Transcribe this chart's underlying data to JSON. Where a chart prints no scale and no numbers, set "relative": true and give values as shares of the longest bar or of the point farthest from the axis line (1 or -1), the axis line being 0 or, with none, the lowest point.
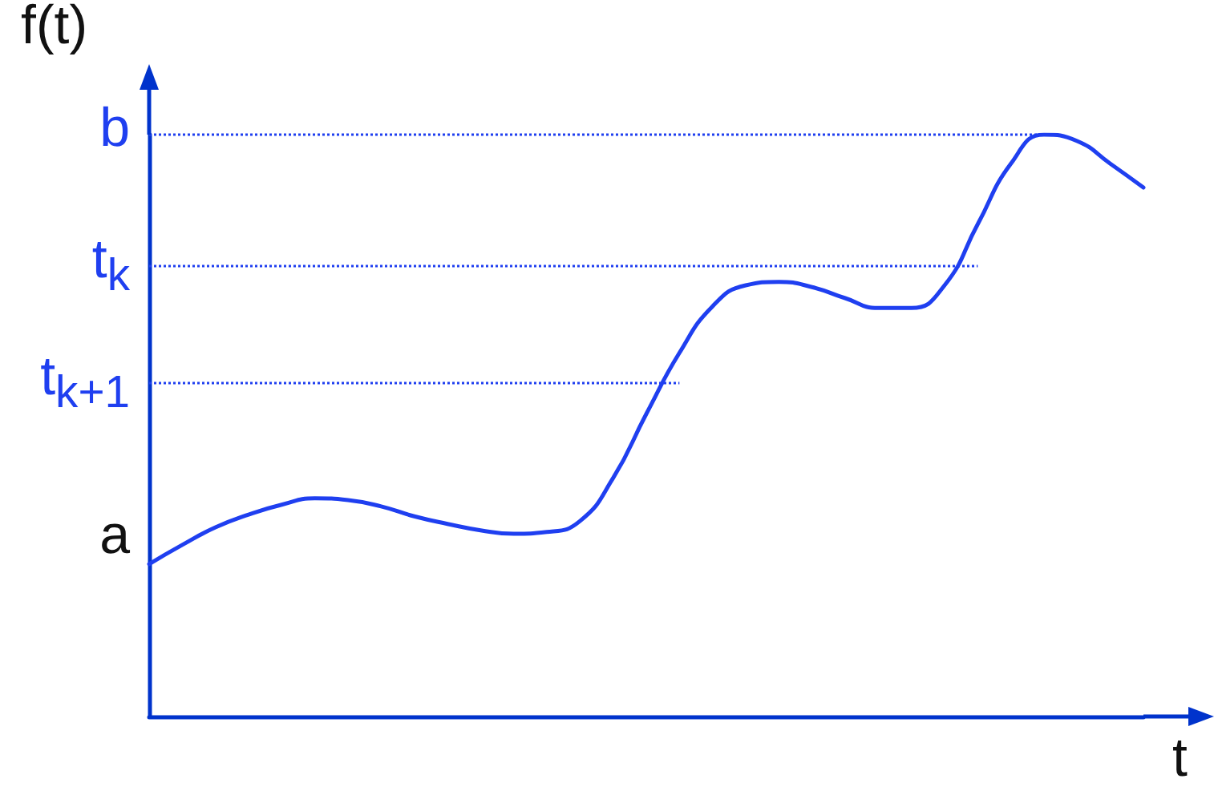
{
  "chart_data": {
    "type": "line",
    "relative": true,
    "xlabel": "t",
    "ylabel": "f(t)",
    "color": "#1f3ff0",
    "marker": "none",
    "line_style": "solid",
    "grid": false,
    "categories": [
      null,
      null,
      null,
      null,
      null,
      null,
      null,
      null,
      null,
      null,
      null,
      null,
      null,
      null,
      null,
      null,
      null,
      null,
      null,
      null,
      null,
      null,
      null,
      null,
      null,
      null,
      null,
      null,
      null,
      null,
      null
    ],
    "values": [
      0.262,
      0.295,
      0.325,
      0.347,
      0.364,
      0.375,
      0.372,
      0.361,
      0.344,
      0.331,
      0.32,
      0.314,
      0.317,
      0.336,
      0.41,
      0.52,
      0.625,
      0.705,
      0.741,
      0.747,
      0.738,
      0.719,
      0.702,
      0.702,
      0.741,
      0.846,
      0.95,
      1,
      0.989,
      0.95,
      0.909
    ],
    "ref_lines": [
      {
        "axis": "y",
        "value": 1,
        "label": "b",
        "color": "#1f3ff0",
        "line_style": "dotted"
      },
      {
        "axis": "y",
        "value": 0.774,
        "label": "t$_{k}$",
        "color": "#1f3ff0",
        "line_style": "dotted"
      },
      {
        "axis": "y",
        "value": 0.573,
        "label": "t$_{k+1}$",
        "color": "#1f3ff0",
        "line_style": "dotted"
      }
    ],
    "annotations": [
      "a"
    ]
  }
}
